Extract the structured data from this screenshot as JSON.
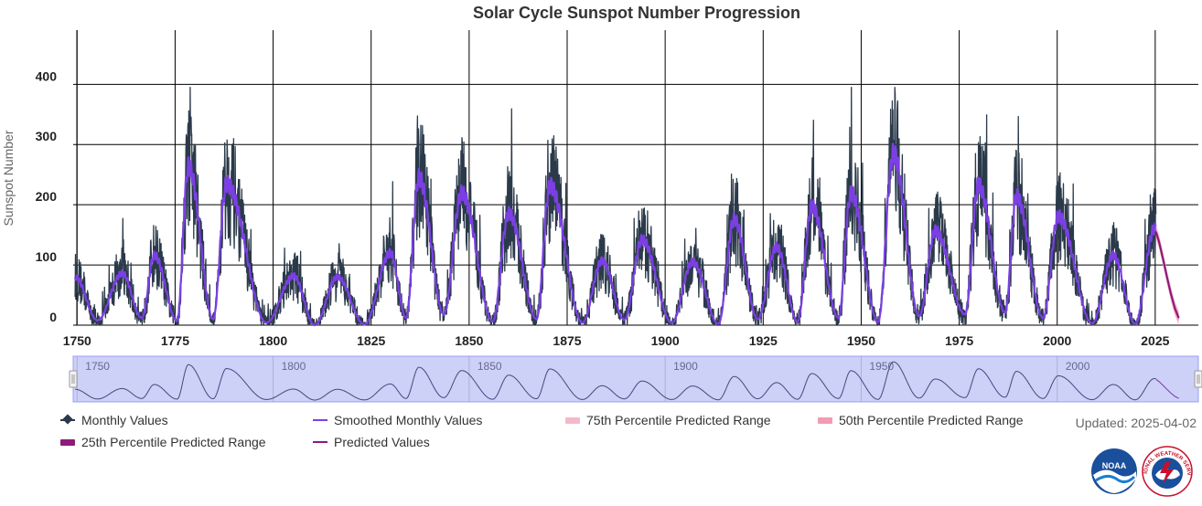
{
  "chart_data": {
    "type": "line",
    "title": "Solar Cycle Sunspot Number Progression",
    "ylabel": "Sunspot Number",
    "xlabel": "",
    "xlim": [
      1749,
      2036
    ],
    "ylim": [
      0,
      490
    ],
    "x_ticks": [
      1750,
      1775,
      1800,
      1825,
      1850,
      1875,
      1900,
      1925,
      1950,
      1975,
      2000,
      2025
    ],
    "y_ticks": [
      0,
      100,
      200,
      300,
      400
    ],
    "grid": true,
    "legend_position": "bottom",
    "series": [
      {
        "name": "Monthly Values",
        "color": "#2b3a4a"
      },
      {
        "name": "Smoothed Monthly Values",
        "color": "#7b3fe4"
      },
      {
        "name": "75th Percentile Predicted Range",
        "color": "#f6b8c9"
      },
      {
        "name": "50th Percentile Predicted Range",
        "color": "#f39ab5"
      },
      {
        "name": "25th Percentile Predicted Range",
        "color": "#8e1a7a"
      },
      {
        "name": "Predicted Values",
        "color": "#8e1a7a"
      }
    ],
    "smoothed_extrema": [
      [
        1749.5,
        80
      ],
      [
        1755.2,
        8
      ],
      [
        1761.5,
        86
      ],
      [
        1766.5,
        12
      ],
      [
        1769.7,
        116
      ],
      [
        1775.5,
        7
      ],
      [
        1778.4,
        264
      ],
      [
        1784.7,
        10
      ],
      [
        1788.1,
        235
      ],
      [
        1798.3,
        4
      ],
      [
        1805.2,
        82
      ],
      [
        1810.6,
        0
      ],
      [
        1816.4,
        80
      ],
      [
        1823.3,
        1
      ],
      [
        1829.9,
        120
      ],
      [
        1833.9,
        12
      ],
      [
        1837.2,
        245
      ],
      [
        1843.5,
        18
      ],
      [
        1848.1,
        220
      ],
      [
        1856.0,
        6
      ],
      [
        1860.1,
        186
      ],
      [
        1867.2,
        10
      ],
      [
        1870.6,
        232
      ],
      [
        1878.9,
        4
      ],
      [
        1883.9,
        107
      ],
      [
        1889.6,
        9
      ],
      [
        1894.1,
        142
      ],
      [
        1901.7,
        4
      ],
      [
        1907.0,
        105
      ],
      [
        1913.6,
        2
      ],
      [
        1917.6,
        176
      ],
      [
        1923.6,
        10
      ],
      [
        1928.4,
        130
      ],
      [
        1933.8,
        6
      ],
      [
        1937.4,
        198
      ],
      [
        1944.2,
        12
      ],
      [
        1947.4,
        219
      ],
      [
        1954.3,
        5
      ],
      [
        1958.2,
        285
      ],
      [
        1964.8,
        15
      ],
      [
        1968.9,
        157
      ],
      [
        1976.5,
        18
      ],
      [
        1979.9,
        233
      ],
      [
        1986.7,
        21
      ],
      [
        1989.6,
        214
      ],
      [
        1996.4,
        12
      ],
      [
        2000.3,
        181
      ],
      [
        2008.9,
        3
      ],
      [
        2014.3,
        116
      ],
      [
        2019.9,
        2
      ],
      [
        2024.8,
        160
      ]
    ],
    "predicted": [
      [
        2025.2,
        155
      ],
      [
        2026.0,
        138
      ],
      [
        2027.0,
        110
      ],
      [
        2028.0,
        80
      ],
      [
        2029.0,
        52
      ],
      [
        2030.0,
        28
      ],
      [
        2031.0,
        12
      ]
    ]
  },
  "navigator": {
    "x_ticks": [
      1750,
      1800,
      1850,
      1900,
      1950,
      2000
    ]
  },
  "updated_text": "Updated: 2025-04-02",
  "logos": {
    "noaa": "NOAA",
    "nws": "NATIONAL WEATHER SERVICE"
  }
}
